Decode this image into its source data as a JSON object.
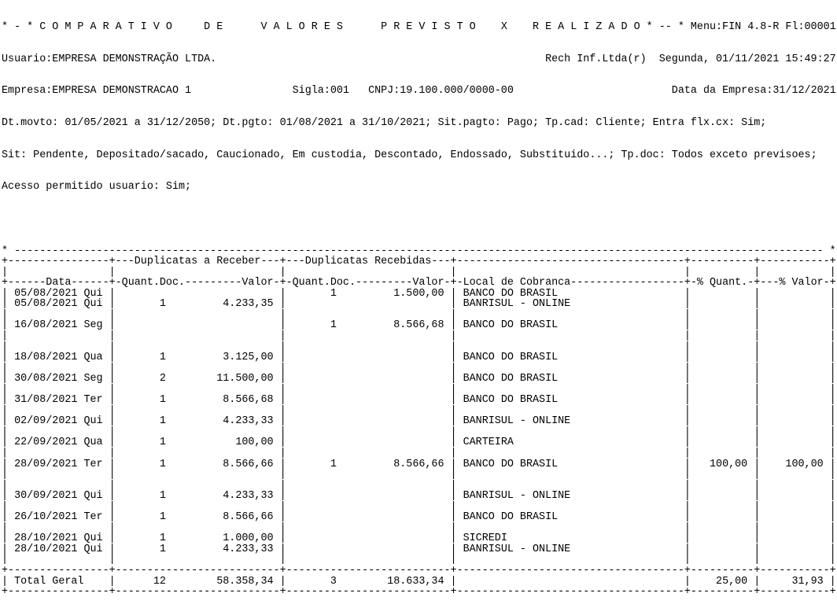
{
  "header": {
    "title_text": "* - * C O M P A R A T I V O     D E      V A L O R E S      P R E V I S T O    X    R E A L I Z A D O * -- *",
    "menu_ref": "Menu:FIN 4.8-R Fl:00001",
    "usuario": "Usuario:EMPRESA DEMONSTRAÇÃO LTDA.",
    "vendor": "Rech Inf.Ltda(r)",
    "datetime": "Segunda, 01/11/2021 15:49:27",
    "empresa": "Empresa:EMPRESA DEMONSTRACAO 1",
    "sigla": "Sigla:001",
    "cnpj": "CNPJ:19.100.000/0000-00",
    "data_empresa": "Data da Empresa:31/12/2021",
    "filters": [
      "Dt.movto: 01/05/2021 a 31/12/2050; Dt.pgto: 01/08/2021 a 31/10/2021; Sit.pagto: Pago; Tp.cad: Cliente; Entra flx.cx: Sim;",
      "Sit: Pendente, Depositado/sacado, Caucionado, Em custodia, Descontado, Endossado, Substituido...; Tp.doc: Todos exceto previsoes;",
      "Acesso permitido usuario: Sim;"
    ]
  },
  "table": {
    "group_receber": "Duplicatas a Receber",
    "group_recebidas": "Duplicatas Recebidas",
    "col_data": "Data",
    "col_qtd": "Quant.Doc.",
    "col_valor": "Valor",
    "col_local": "Local de Cobranca",
    "col_pct_quant": "% Quant.",
    "col_pct_valor": "% Valor",
    "rows": [
      {
        "data": "05/08/2021 Qui",
        "receber_qtd": "",
        "receber_valor": "",
        "recebidas_qtd": "1",
        "recebidas_valor": "1.500,00",
        "local": "BANCO DO BRASIL",
        "pct_quant": "",
        "pct_valor": "",
        "gap_after": 0
      },
      {
        "data": "05/08/2021 Qui",
        "receber_qtd": "1",
        "receber_valor": "4.233,35",
        "recebidas_qtd": "",
        "recebidas_valor": "",
        "local": "BANRISUL - ONLINE",
        "pct_quant": "",
        "pct_valor": "",
        "gap_after": 1
      },
      {
        "data": "16/08/2021 Seg",
        "receber_qtd": "",
        "receber_valor": "",
        "recebidas_qtd": "1",
        "recebidas_valor": "8.566,68",
        "local": "BANCO DO BRASIL",
        "pct_quant": "",
        "pct_valor": "",
        "gap_after": 2
      },
      {
        "data": "18/08/2021 Qua",
        "receber_qtd": "1",
        "receber_valor": "3.125,00",
        "recebidas_qtd": "",
        "recebidas_valor": "",
        "local": "BANCO DO BRASIL",
        "pct_quant": "",
        "pct_valor": "",
        "gap_after": 1
      },
      {
        "data": "30/08/2021 Seg",
        "receber_qtd": "2",
        "receber_valor": "11.500,00",
        "recebidas_qtd": "",
        "recebidas_valor": "",
        "local": "BANCO DO BRASIL",
        "pct_quant": "",
        "pct_valor": "",
        "gap_after": 1
      },
      {
        "data": "31/08/2021 Ter",
        "receber_qtd": "1",
        "receber_valor": "8.566,68",
        "recebidas_qtd": "",
        "recebidas_valor": "",
        "local": "BANCO DO BRASIL",
        "pct_quant": "",
        "pct_valor": "",
        "gap_after": 1
      },
      {
        "data": "02/09/2021 Qui",
        "receber_qtd": "1",
        "receber_valor": "4.233,33",
        "recebidas_qtd": "",
        "recebidas_valor": "",
        "local": "BANRISUL - ONLINE",
        "pct_quant": "",
        "pct_valor": "",
        "gap_after": 1
      },
      {
        "data": "22/09/2021 Qua",
        "receber_qtd": "1",
        "receber_valor": "100,00",
        "recebidas_qtd": "",
        "recebidas_valor": "",
        "local": "CARTEIRA",
        "pct_quant": "",
        "pct_valor": "",
        "gap_after": 1
      },
      {
        "data": "28/09/2021 Ter",
        "receber_qtd": "1",
        "receber_valor": "8.566,66",
        "recebidas_qtd": "1",
        "recebidas_valor": "8.566,66",
        "local": "BANCO DO BRASIL",
        "pct_quant": "100,00",
        "pct_valor": "100,00",
        "gap_after": 2
      },
      {
        "data": "30/09/2021 Qui",
        "receber_qtd": "1",
        "receber_valor": "4.233,33",
        "recebidas_qtd": "",
        "recebidas_valor": "",
        "local": "BANRISUL - ONLINE",
        "pct_quant": "",
        "pct_valor": "",
        "gap_after": 1
      },
      {
        "data": "26/10/2021 Ter",
        "receber_qtd": "1",
        "receber_valor": "8.566,66",
        "recebidas_qtd": "",
        "recebidas_valor": "",
        "local": "BANCO DO BRASIL",
        "pct_quant": "",
        "pct_valor": "",
        "gap_after": 1
      },
      {
        "data": "28/10/2021 Qui",
        "receber_qtd": "1",
        "receber_valor": "1.000,00",
        "recebidas_qtd": "",
        "recebidas_valor": "",
        "local": "SICREDI",
        "pct_quant": "",
        "pct_valor": "",
        "gap_after": 0
      },
      {
        "data": "28/10/2021 Qui",
        "receber_qtd": "1",
        "receber_valor": "4.233,33",
        "recebidas_qtd": "",
        "recebidas_valor": "",
        "local": "BANRISUL - ONLINE",
        "pct_quant": "",
        "pct_valor": "",
        "gap_after": 1
      }
    ],
    "total": {
      "label": "Total Geral",
      "receber_qtd": "12",
      "receber_valor": "58.358,34",
      "recebidas_qtd": "3",
      "recebidas_valor": "18.633,34",
      "pct_quant": "25,00",
      "pct_valor": "31,93"
    }
  }
}
